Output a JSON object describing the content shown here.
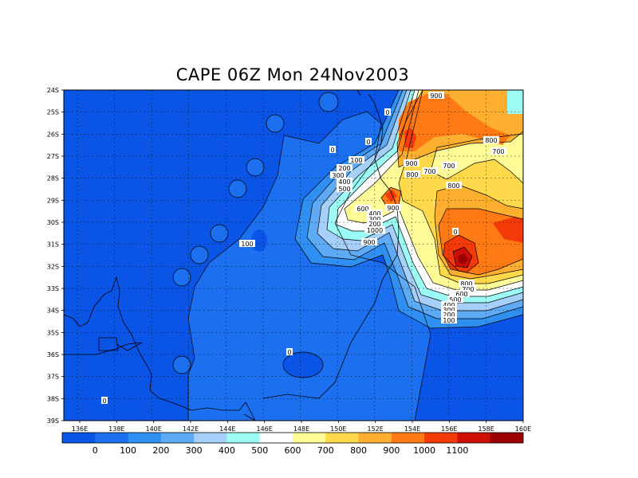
{
  "title": "CAPE 06Z Mon 24Nov2003",
  "lat_labels": [
    "24S",
    "25S",
    "26S",
    "27S",
    "28S",
    "29S",
    "30S",
    "31S",
    "32S",
    "33S",
    "34S",
    "35S",
    "36S",
    "37S",
    "38S",
    "39S"
  ],
  "lon_labels": [
    "136E",
    "138E",
    "140E",
    "142E",
    "144E",
    "146E",
    "148E",
    "150E",
    "152E",
    "154E",
    "156E",
    "158E",
    "160E"
  ],
  "contour_labels": [
    "900",
    "0",
    "0",
    "800",
    "0",
    "700",
    "100",
    "900",
    "700",
    "200",
    "800",
    "700",
    "300",
    "400",
    "500",
    "800",
    "600",
    "900",
    "400",
    "300",
    "200",
    "1000",
    "0",
    "100",
    "900",
    "800",
    "700",
    "600",
    "500",
    "400",
    "300",
    "200",
    "100",
    "0",
    "0"
  ],
  "colorbar": {
    "colors": [
      "#0a55e6",
      "#1c6fee",
      "#3090f2",
      "#5eaaf5",
      "#a6d0fa",
      "#9cfcf5",
      "#ffffff",
      "#fffc98",
      "#ffd94c",
      "#ffaf30",
      "#ff7a14",
      "#f53a0a",
      "#cd0f06",
      "#9c0000"
    ],
    "labels": [
      "0",
      "100",
      "200",
      "300",
      "400",
      "500",
      "600",
      "700",
      "800",
      "900",
      "1000",
      "1100"
    ]
  }
}
